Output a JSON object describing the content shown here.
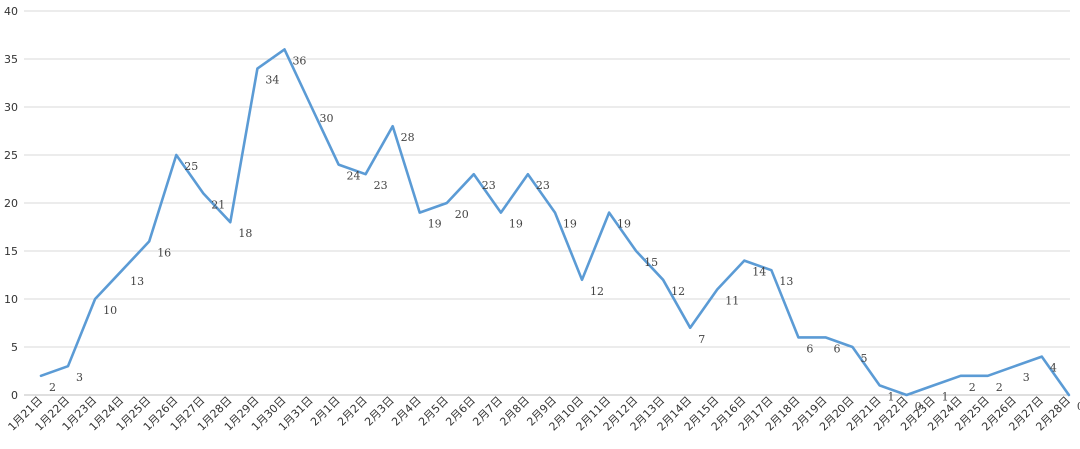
{
  "chart_data": {
    "type": "line",
    "title": "",
    "xlabel": "",
    "ylabel": "",
    "ylim": [
      0,
      40
    ],
    "yticks": [
      0,
      5,
      10,
      15,
      20,
      25,
      30,
      35,
      40
    ],
    "grid": true,
    "legend": "none",
    "series_color": "#5b9bd5",
    "categories": [
      "1月21日",
      "1月22日",
      "1月23日",
      "1月24日",
      "1月25日",
      "1月26日",
      "1月27日",
      "1月28日",
      "1月29日",
      "1月30日",
      "1月31日",
      "2月1日",
      "2月2日",
      "2月3日",
      "2月4日",
      "2月5日",
      "2月6日",
      "2月7日",
      "2月8日",
      "2月9日",
      "2月10日",
      "2月11日",
      "2月12日",
      "2月13日",
      "2月14日",
      "2月15日",
      "2月16日",
      "2月17日",
      "2月18日",
      "2月19日",
      "2月20日",
      "2月21日",
      "2月22日",
      "2月23日",
      "2月24日",
      "2月25日",
      "2月26日",
      "2月27日",
      "2月28日"
    ],
    "series": [
      {
        "values": [
          2,
          3,
          10,
          13,
          16,
          25,
          21,
          18,
          34,
          36,
          30,
          24,
          23,
          28,
          19,
          20,
          23,
          19,
          23,
          19,
          12,
          19,
          15,
          12,
          7,
          11,
          14,
          13,
          6,
          6,
          5,
          1,
          0,
          1,
          2,
          2,
          3,
          4,
          0
        ]
      }
    ]
  }
}
